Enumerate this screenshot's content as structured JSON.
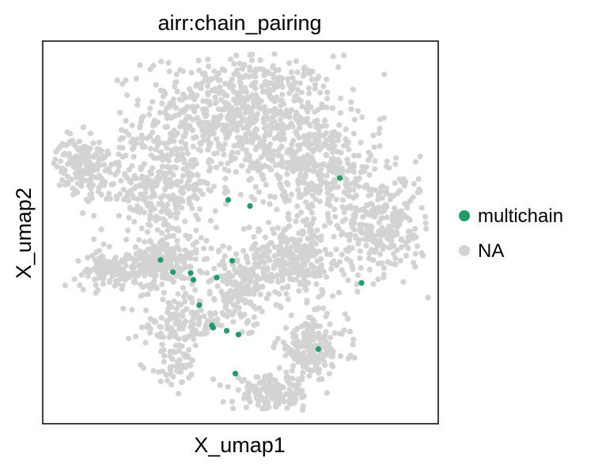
{
  "chart_data": {
    "type": "scatter",
    "title": "airr:chain_pairing",
    "xlabel": "X_umap1",
    "ylabel": "X_umap2",
    "ticks": "none",
    "grid": false,
    "legend_position": "right",
    "xlim": [
      0,
      10
    ],
    "ylim": [
      0,
      10
    ],
    "background_color": "#d3d3d3",
    "series": [
      {
        "name": "multichain",
        "color": "#1f9e6a",
        "points": [
          [
            7.51,
            6.42
          ],
          [
            4.69,
            5.85
          ],
          [
            5.24,
            5.69
          ],
          [
            2.98,
            4.28
          ],
          [
            4.79,
            4.26
          ],
          [
            3.29,
            3.96
          ],
          [
            3.74,
            3.94
          ],
          [
            3.81,
            3.76
          ],
          [
            4.4,
            3.82
          ],
          [
            3.96,
            3.1
          ],
          [
            4.28,
            2.57
          ],
          [
            4.31,
            2.51
          ],
          [
            4.65,
            2.43
          ],
          [
            4.95,
            2.33
          ],
          [
            6.97,
            1.95
          ],
          [
            4.87,
            1.31
          ],
          [
            8.06,
            3.68
          ]
        ]
      },
      {
        "name": "NA",
        "color": "#d3d3d3",
        "clusters": [
          [
            5.0,
            8.1,
            2.2,
            1.4,
            700
          ],
          [
            2.9,
            6.2,
            1.4,
            1.3,
            320
          ],
          [
            6.9,
            6.7,
            1.5,
            1.2,
            340
          ],
          [
            8.6,
            5.2,
            1.0,
            1.2,
            280
          ],
          [
            1.0,
            6.8,
            0.6,
            0.6,
            170
          ],
          [
            3.0,
            4.2,
            0.8,
            0.6,
            240
          ],
          [
            1.6,
            4.0,
            0.7,
            0.4,
            110
          ],
          [
            6.4,
            4.3,
            1.1,
            0.9,
            280
          ],
          [
            5.0,
            3.6,
            1.0,
            0.9,
            210
          ],
          [
            6.8,
            2.0,
            0.8,
            0.7,
            190
          ],
          [
            5.8,
            0.8,
            0.9,
            0.4,
            170
          ],
          [
            3.5,
            2.6,
            0.9,
            0.6,
            120
          ],
          [
            3.3,
            1.5,
            0.6,
            0.5,
            45
          ]
        ]
      }
    ]
  }
}
